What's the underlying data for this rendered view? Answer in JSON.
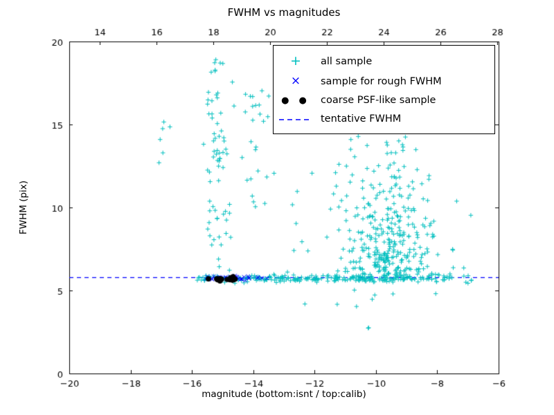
{
  "title": "FWHM vs magnitudes",
  "legend": {
    "items": [
      {
        "label": "all sample",
        "marker": "plus",
        "glyph": "+",
        "color": "#00bfbf"
      },
      {
        "label": "sample for rough FWHM",
        "marker": "cross",
        "glyph": "×",
        "color": "#0000ff"
      },
      {
        "label": "coarse PSF-like sample",
        "marker": "two-dots",
        "glyph": "● ●",
        "color": "#000000"
      },
      {
        "label": "tentative FWHM",
        "marker": "dashed-line",
        "color": "#0000ff"
      }
    ]
  },
  "chart_data": {
    "type": "scatter",
    "title": "FWHM vs magnitudes",
    "xlabel": "magnitude (bottom:isnt / top:calib)",
    "ylabel": "FWHM (pix)",
    "xlim": [
      -20,
      -6
    ],
    "ylim": [
      0,
      20
    ],
    "grid": false,
    "legend_position": "upper right",
    "x_ticks": [
      -20,
      -18,
      -16,
      -14,
      -12,
      -10,
      -8,
      -6
    ],
    "x_tick_labels": [
      "−20",
      "−18",
      "−16",
      "−14",
      "−12",
      "−10",
      "−8",
      "−6"
    ],
    "y_ticks": [
      0,
      5,
      10,
      15,
      20
    ],
    "y_tick_labels": [
      "0",
      "5",
      "10",
      "15",
      "20"
    ],
    "top_axis": {
      "lim": [
        12.93,
        28.05
      ],
      "ticks": [
        14,
        16,
        18,
        20,
        22,
        24,
        26,
        28
      ],
      "labels": [
        "14",
        "16",
        "18",
        "20",
        "22",
        "24",
        "26",
        "28"
      ]
    },
    "tentative_fwhm": {
      "y": 5.78,
      "color": "#0000ff",
      "style": "dashed"
    },
    "seed": 7,
    "series": [
      {
        "name": "all sample",
        "marker": "plus",
        "color": "#00bfbf",
        "clusters": [
          {
            "n": 70,
            "x": {
              "dist": "gauss",
              "mean": -15.15,
              "sd": 0.22,
              "min": -15.7,
              "max": -14.55
            },
            "y": {
              "dist": "uniform",
              "min": 5.9,
              "max": 19.2
            }
          },
          {
            "n": 25,
            "x": {
              "dist": "gauss",
              "mean": -13.9,
              "sd": 0.22,
              "min": -14.45,
              "max": -13.45
            },
            "y": {
              "dist": "uniform",
              "min": 9.6,
              "max": 17.4
            }
          },
          {
            "n": 6,
            "x": {
              "dist": "uniform",
              "min": -17.1,
              "max": -16.2
            },
            "y": {
              "dist": "uniform",
              "min": 12.6,
              "max": 15.5
            }
          },
          {
            "n": 8,
            "x": {
              "dist": "uniform",
              "min": -13.4,
              "max": -12.0
            },
            "y": {
              "dist": "uniform",
              "min": 7.0,
              "max": 12.5
            }
          },
          {
            "n": 120,
            "x": {
              "dist": "uniform",
              "min": -15.85,
              "max": -11.7
            },
            "y": {
              "dist": "gauss",
              "mean": 5.72,
              "sd": 0.12
            }
          },
          {
            "n": 280,
            "x": {
              "dist": "gauss",
              "mean": -9.55,
              "sd": 0.75,
              "min": -11.6,
              "max": -7.3
            },
            "y": {
              "dist": "absgauss",
              "base": 5.5,
              "sd": 2.0,
              "max": 13.5
            }
          },
          {
            "n": 100,
            "x": {
              "dist": "gauss",
              "mean": -9.8,
              "sd": 0.85,
              "min": -11.7,
              "max": -7.8
            },
            "y": {
              "dist": "uniform",
              "min": 8.0,
              "max": 14.3
            }
          },
          {
            "n": 80,
            "x": {
              "dist": "uniform",
              "min": -11.6,
              "max": -7.6
            },
            "y": {
              "dist": "gauss",
              "mean": 5.72,
              "sd": 0.09
            }
          },
          {
            "n": 14,
            "x": {
              "dist": "uniform",
              "min": -8.1,
              "max": -6.8
            },
            "y": {
              "dist": "gauss",
              "mean": 5.75,
              "sd": 0.35
            }
          },
          {
            "n": 6,
            "x": {
              "dist": "uniform",
              "min": -8.4,
              "max": -6.9
            },
            "y": {
              "dist": "uniform",
              "min": 7.0,
              "max": 12.4
            }
          },
          {
            "n": 8,
            "x": {
              "dist": "uniform",
              "min": -12.9,
              "max": -8.0
            },
            "y": {
              "dist": "uniform",
              "min": 4.0,
              "max": 5.1
            }
          },
          {
            "n": 2,
            "x": {
              "dist": "uniform",
              "min": -10.4,
              "max": -10.0
            },
            "y": {
              "dist": "uniform",
              "min": 2.5,
              "max": 2.8
            }
          }
        ]
      },
      {
        "name": "sample for rough FWHM",
        "marker": "cross",
        "color": "#0000ff",
        "clusters": [
          {
            "n": 42,
            "x": {
              "dist": "uniform",
              "min": -15.55,
              "max": -13.35
            },
            "y": {
              "dist": "gauss",
              "mean": 5.76,
              "sd": 0.08
            }
          }
        ]
      },
      {
        "name": "coarse PSF-like sample",
        "marker": "dot",
        "color": "#000000",
        "clusters": [
          {
            "n": 16,
            "x": {
              "dist": "uniform",
              "min": -15.5,
              "max": -14.55
            },
            "y": {
              "dist": "gauss",
              "mean": 5.68,
              "sd": 0.07
            }
          }
        ]
      }
    ]
  }
}
